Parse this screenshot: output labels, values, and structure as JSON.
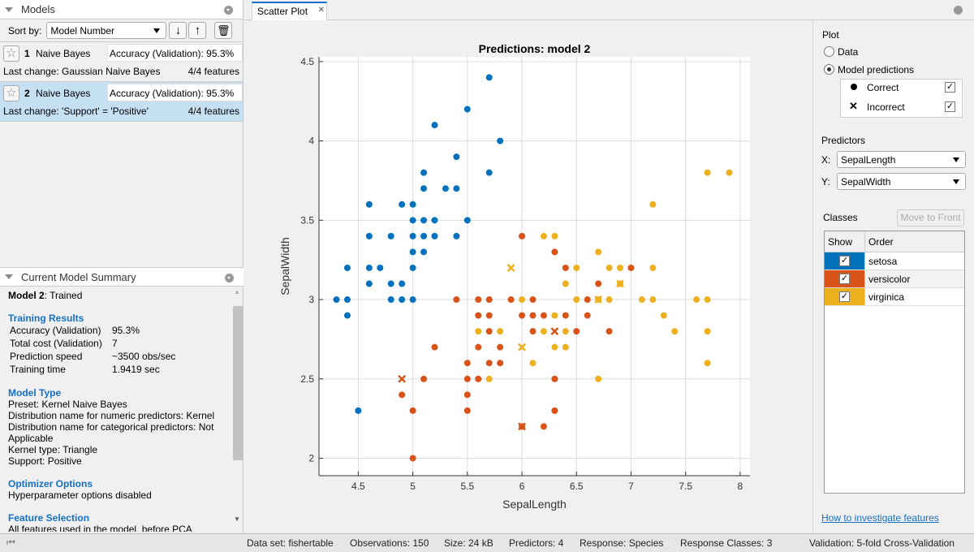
{
  "models_panel": {
    "title": "Models",
    "sort_label": "Sort by:",
    "sort_value": "Model Number",
    "models": [
      {
        "number": "1",
        "name": "Naive Bayes",
        "accuracy": "Accuracy (Validation):  95.3%",
        "last_change": "Last change: Gaussian Naive Bayes",
        "features": "4/4 features",
        "selected": false
      },
      {
        "number": "2",
        "name": "Naive Bayes",
        "accuracy": "Accuracy (Validation):  95.3%",
        "last_change": "Last change: 'Support' = 'Positive'",
        "features": "4/4 features",
        "selected": true
      }
    ]
  },
  "summary": {
    "title": "Current Model Summary",
    "model_label": "Model 2",
    "model_status": ": Trained",
    "training_results": {
      "heading": "Training Results",
      "rows": [
        {
          "k": "Accuracy (Validation)",
          "v": "95.3%"
        },
        {
          "k": "Total cost (Validation)",
          "v": "7"
        },
        {
          "k": "Prediction speed",
          "v": "~3500 obs/sec"
        },
        {
          "k": "Training time",
          "v": "1.9419 sec"
        }
      ]
    },
    "model_type": {
      "heading": "Model Type",
      "lines": [
        "Preset: Kernel Naive Bayes",
        "Distribution name for numeric predictors: Kernel",
        "Distribution name for categorical predictors: Not Applicable",
        "Kernel type: Triangle",
        "Support: Positive"
      ]
    },
    "optimizer": {
      "heading": "Optimizer Options",
      "lines": [
        "Hyperparameter options disabled"
      ]
    },
    "feature_selection": {
      "heading": "Feature Selection",
      "lines": [
        "All features used in the model, before PCA"
      ]
    }
  },
  "tab": {
    "label": "Scatter Plot"
  },
  "right_panel": {
    "plot_heading": "Plot",
    "data_option": "Data",
    "predictions_option": "Model predictions",
    "selected_option": "Model predictions",
    "correct_label": "Correct",
    "incorrect_label": "Incorrect",
    "correct_checked": true,
    "incorrect_checked": true,
    "predictors_heading": "Predictors",
    "x_label": "X:",
    "x_value": "SepalLength",
    "y_label": "Y:",
    "y_value": "SepalWidth",
    "classes_heading": "Classes",
    "move_to_front": "Move to Front",
    "col_show": "Show",
    "col_order": "Order",
    "classes": [
      {
        "name": "setosa",
        "color": "#0072BD",
        "show": true
      },
      {
        "name": "versicolor",
        "color": "#D95319",
        "show": true
      },
      {
        "name": "virginica",
        "color": "#EDB120",
        "show": true
      }
    ],
    "help_link": "How to investigate features"
  },
  "status": {
    "dataset": "Data set: fishertable",
    "observations": "Observations: 150",
    "size": "Size: 24 kB",
    "predictors": "Predictors: 4",
    "response": "Response: Species",
    "classes": "Response Classes: 3",
    "validation": "Validation: 5-fold Cross-Validation"
  },
  "chart_data": {
    "type": "scatter",
    "title": "Predictions: model 2",
    "xlabel": "SepalLength",
    "ylabel": "SepalWidth",
    "xlim": [
      4.14,
      8.09
    ],
    "ylim": [
      1.89,
      4.53
    ],
    "grid": true,
    "xticks": [
      4.5,
      5,
      5.5,
      6,
      6.5,
      7,
      7.5,
      8
    ],
    "xtick_labels": [
      "4.5",
      "5",
      "5.5",
      "6",
      "6.5",
      "7",
      "7.5",
      "8"
    ],
    "yticks": [
      2,
      2.5,
      3,
      3.5,
      4,
      4.5
    ],
    "ytick_labels": [
      "2",
      "2.5",
      "3",
      "3.5",
      "4",
      "4.5"
    ],
    "series": [
      {
        "name": "setosa",
        "color": "#0072BD",
        "correct": [
          [
            4.3,
            3.0
          ],
          [
            4.4,
            3.0
          ],
          [
            4.4,
            3.2
          ],
          [
            4.4,
            2.9
          ],
          [
            4.5,
            2.3
          ],
          [
            4.6,
            3.6
          ],
          [
            4.6,
            3.4
          ],
          [
            4.6,
            3.2
          ],
          [
            4.6,
            3.1
          ],
          [
            4.7,
            3.2
          ],
          [
            4.8,
            3.4
          ],
          [
            4.8,
            3.1
          ],
          [
            4.8,
            3.0
          ],
          [
            4.9,
            3.6
          ],
          [
            4.9,
            3.1
          ],
          [
            4.9,
            3.0
          ],
          [
            5.0,
            3.6
          ],
          [
            5.0,
            3.5
          ],
          [
            5.0,
            3.4
          ],
          [
            5.0,
            3.3
          ],
          [
            5.0,
            3.2
          ],
          [
            5.0,
            3.0
          ],
          [
            5.1,
            3.8
          ],
          [
            5.1,
            3.7
          ],
          [
            5.1,
            3.5
          ],
          [
            5.1,
            3.4
          ],
          [
            5.1,
            3.3
          ],
          [
            5.2,
            4.1
          ],
          [
            5.2,
            3.5
          ],
          [
            5.2,
            3.4
          ],
          [
            5.3,
            3.7
          ],
          [
            5.4,
            3.9
          ],
          [
            5.4,
            3.7
          ],
          [
            5.4,
            3.4
          ],
          [
            5.5,
            4.2
          ],
          [
            5.5,
            3.5
          ],
          [
            5.7,
            4.4
          ],
          [
            5.7,
            3.8
          ],
          [
            5.8,
            4.0
          ]
        ],
        "incorrect": []
      },
      {
        "name": "versicolor",
        "color": "#D95319",
        "correct": [
          [
            5.4,
            3.0
          ],
          [
            5.6,
            3.0
          ],
          [
            5.7,
            3.0
          ],
          [
            5.9,
            3.0
          ],
          [
            6.1,
            3.0
          ],
          [
            5.6,
            2.9
          ],
          [
            5.7,
            2.9
          ],
          [
            6.0,
            2.9
          ],
          [
            6.1,
            2.9
          ],
          [
            5.7,
            2.8
          ],
          [
            6.1,
            2.8
          ],
          [
            5.2,
            2.7
          ],
          [
            5.6,
            2.7
          ],
          [
            5.8,
            2.7
          ],
          [
            5.5,
            2.6
          ],
          [
            5.7,
            2.6
          ],
          [
            5.8,
            2.6
          ],
          [
            5.1,
            2.5
          ],
          [
            5.5,
            2.5
          ],
          [
            5.6,
            2.5
          ],
          [
            4.9,
            2.4
          ],
          [
            5.5,
            2.4
          ],
          [
            5.0,
            2.3
          ],
          [
            5.5,
            2.3
          ],
          [
            6.2,
            2.2
          ],
          [
            5.0,
            2.0
          ],
          [
            6.0,
            3.4
          ],
          [
            6.3,
            3.3
          ],
          [
            6.4,
            3.2
          ],
          [
            7.0,
            3.2
          ],
          [
            6.7,
            3.1
          ],
          [
            6.6,
            3.0
          ],
          [
            6.2,
            2.9
          ],
          [
            6.4,
            2.9
          ],
          [
            6.6,
            2.9
          ],
          [
            6.5,
            2.8
          ],
          [
            6.8,
            2.8
          ],
          [
            6.3,
            2.5
          ],
          [
            6.3,
            2.3
          ],
          [
            6.0,
            2.2
          ]
        ],
        "incorrect": [
          [
            4.9,
            2.5
          ],
          [
            6.3,
            2.8
          ],
          [
            6.0,
            2.2
          ]
        ]
      },
      {
        "name": "virginica",
        "color": "#EDB120",
        "correct": [
          [
            6.0,
            3.0
          ],
          [
            5.6,
            2.8
          ],
          [
            5.8,
            2.8
          ],
          [
            6.1,
            2.6
          ],
          [
            5.7,
            2.5
          ],
          [
            6.2,
            3.4
          ],
          [
            6.3,
            3.4
          ],
          [
            6.7,
            3.3
          ],
          [
            6.5,
            3.2
          ],
          [
            6.8,
            3.2
          ],
          [
            6.9,
            3.2
          ],
          [
            7.2,
            3.2
          ],
          [
            6.4,
            3.1
          ],
          [
            6.9,
            3.1
          ],
          [
            6.5,
            3.0
          ],
          [
            6.7,
            3.0
          ],
          [
            6.8,
            3.0
          ],
          [
            7.1,
            3.0
          ],
          [
            7.2,
            3.0
          ],
          [
            7.6,
            3.0
          ],
          [
            7.7,
            3.0
          ],
          [
            6.3,
            2.9
          ],
          [
            7.3,
            2.9
          ],
          [
            6.2,
            2.8
          ],
          [
            6.4,
            2.8
          ],
          [
            7.4,
            2.8
          ],
          [
            7.7,
            2.8
          ],
          [
            6.3,
            2.7
          ],
          [
            6.4,
            2.7
          ],
          [
            7.7,
            2.6
          ],
          [
            6.7,
            2.5
          ],
          [
            7.2,
            3.6
          ],
          [
            7.7,
            3.8
          ],
          [
            7.9,
            3.8
          ]
        ],
        "incorrect": [
          [
            5.9,
            3.2
          ],
          [
            6.0,
            2.7
          ],
          [
            6.7,
            3.0
          ],
          [
            6.9,
            3.1
          ]
        ]
      }
    ]
  }
}
